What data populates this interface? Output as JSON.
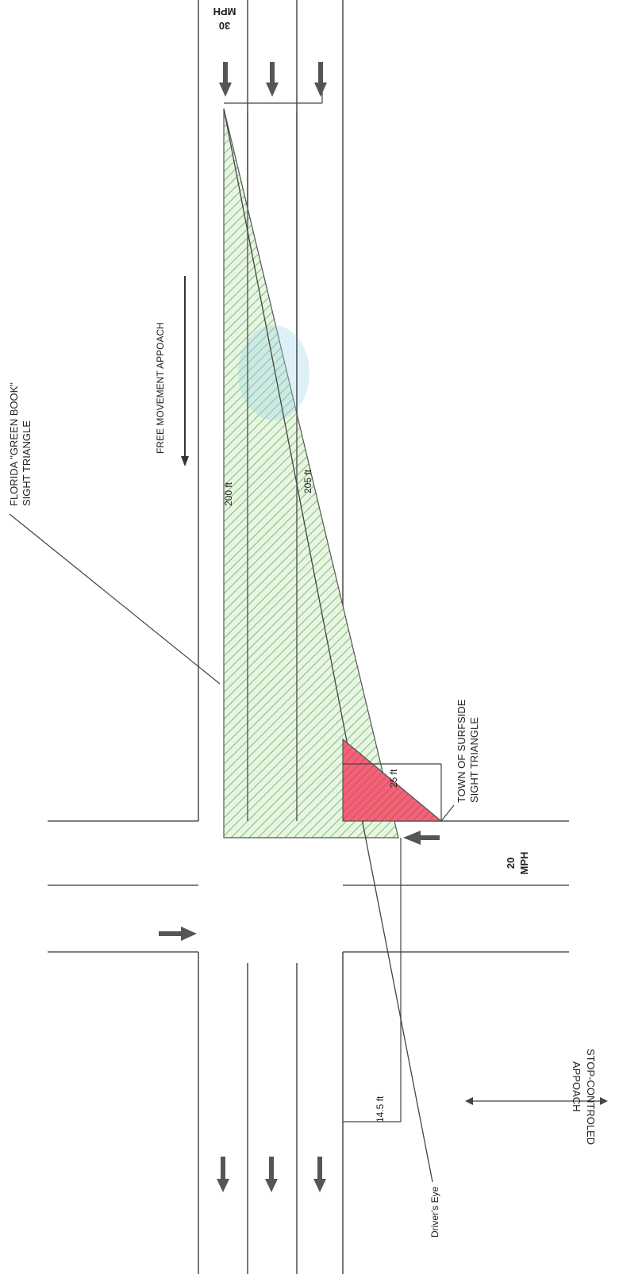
{
  "labels": {
    "green_book_line1": "FLORIDA \"GREEN BOOK\"",
    "green_book_line2": "SIGHT TRIANGLE",
    "free_movement": "FREE MOVEMENT APPOACH",
    "dim_200": "200 ft",
    "dim_205": "205 ft",
    "dim_25": "25 ft",
    "dim_14_5": "14.5 ft",
    "surfside_line1": "TOWN OF SURFSIDE",
    "surfside_line2": "SIGHT TRIANGLE",
    "speed_20_num": "20",
    "speed_20_unit": "MPH",
    "speed_30_num": "30",
    "speed_30_unit": "MPH",
    "stop_line1": "STOP-CONTROLED",
    "stop_line2": "APPOACH",
    "drivers_eye": "Driver's Eye"
  },
  "colors": {
    "green_hatch": "#7fc47a",
    "green_fill": "#e9f5e3",
    "red_fill": "#f06478",
    "road_line": "#555555",
    "arrow": "#555555"
  }
}
